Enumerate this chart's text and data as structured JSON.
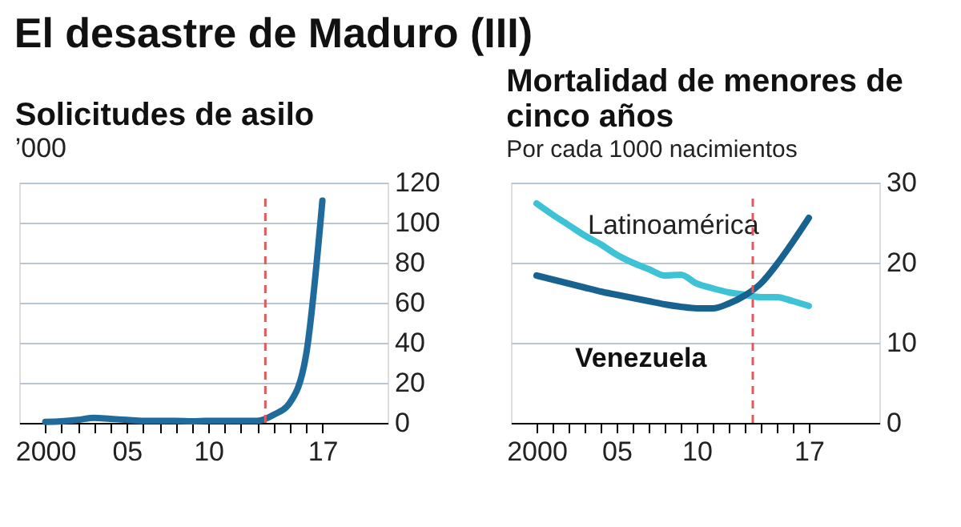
{
  "chart_data": [
    {
      "type": "line",
      "title": "El desastre de Maduro (III)",
      "subtitle": "Solicitudes de asilo",
      "ylabel": "’000",
      "x": [
        2000,
        2001,
        2002,
        2003,
        2004,
        2005,
        2006,
        2007,
        2008,
        2009,
        2010,
        2011,
        2012,
        2013,
        2014,
        2015,
        2016,
        2017
      ],
      "series": [
        {
          "color": "#1f6b9c",
          "values": [
            0.5,
            0.8,
            1.5,
            2.5,
            2,
            1.5,
            1,
            1,
            1,
            0.8,
            1,
            1,
            1,
            1,
            4,
            10,
            34,
            111
          ]
        }
      ],
      "xlim": [
        1998.4,
        2021
      ],
      "ylim": [
        0,
        120
      ],
      "xticks": [
        2000,
        {
          "value": 2001,
          "label": null
        },
        {
          "value": 2002,
          "label": null
        },
        {
          "value": 2003,
          "label": null
        },
        {
          "value": 2004,
          "label": null
        },
        {
          "value": 2005,
          "label": "05"
        },
        {
          "value": 2006,
          "label": null
        },
        {
          "value": 2007,
          "label": null
        },
        {
          "value": 2008,
          "label": null
        },
        {
          "value": 2009,
          "label": null
        },
        {
          "value": 2010,
          "label": "10"
        },
        {
          "value": 2011,
          "label": null
        },
        {
          "value": 2012,
          "label": null
        },
        {
          "value": 2013,
          "label": null
        },
        {
          "value": 2014,
          "label": null
        },
        {
          "value": 2015,
          "label": null
        },
        {
          "value": 2016,
          "label": null
        },
        {
          "value": 2017,
          "label": "17"
        }
      ],
      "yticks": [
        0,
        20,
        40,
        60,
        80,
        100,
        120
      ],
      "grid": "y",
      "ref_lines": [
        {
          "axis": "x",
          "value": 2013.5,
          "color": "#e05a5a",
          "line_style": "dashed"
        }
      ]
    },
    {
      "type": "line",
      "title": "Mortalidad de menores de cinco años",
      "subtitle": "Por cada 1000 nacimientos",
      "x": [
        2000,
        2001,
        2002,
        2003,
        2004,
        2005,
        2006,
        2007,
        2008,
        2009,
        2010,
        2011,
        2012,
        2013,
        2014,
        2015,
        2016,
        2017
      ],
      "series": [
        {
          "name": "Latinoamérica",
          "color": "#3ec3d6",
          "values": [
            27.4,
            26.0,
            24.7,
            23.4,
            22.3,
            21.0,
            20.0,
            19.2,
            18.4,
            18.5,
            17.4,
            16.8,
            16.3,
            16.0,
            15.7,
            15.7,
            15.2,
            14.6
          ]
        },
        {
          "name": "Venezuela",
          "color": "#17628f",
          "values": [
            18.4,
            17.9,
            17.4,
            16.9,
            16.4,
            16.0,
            15.6,
            15.2,
            14.8,
            14.5,
            14.3,
            14.3,
            14.9,
            15.9,
            17.4,
            19.8,
            22.6,
            25.6
          ]
        }
      ],
      "xlim": [
        1998.4,
        2021.4
      ],
      "ylim": [
        0,
        30
      ],
      "xticks": [
        2000,
        {
          "value": 2001,
          "label": null
        },
        {
          "value": 2002,
          "label": null
        },
        {
          "value": 2003,
          "label": null
        },
        {
          "value": 2004,
          "label": null
        },
        {
          "value": 2005,
          "label": "05"
        },
        {
          "value": 2006,
          "label": null
        },
        {
          "value": 2007,
          "label": null
        },
        {
          "value": 2008,
          "label": null
        },
        {
          "value": 2009,
          "label": null
        },
        {
          "value": 2010,
          "label": "10"
        },
        {
          "value": 2011,
          "label": null
        },
        {
          "value": 2012,
          "label": null
        },
        {
          "value": 2013,
          "label": null
        },
        {
          "value": 2014,
          "label": null
        },
        {
          "value": 2015,
          "label": null
        },
        {
          "value": 2016,
          "label": null
        },
        {
          "value": 2017,
          "label": "17"
        }
      ],
      "yticks": [
        0,
        10,
        20,
        30
      ],
      "grid": "y",
      "ref_lines": [
        {
          "axis": "x",
          "value": 2013.5,
          "color": "#e05a5a",
          "line_style": "dashed"
        }
      ]
    }
  ]
}
